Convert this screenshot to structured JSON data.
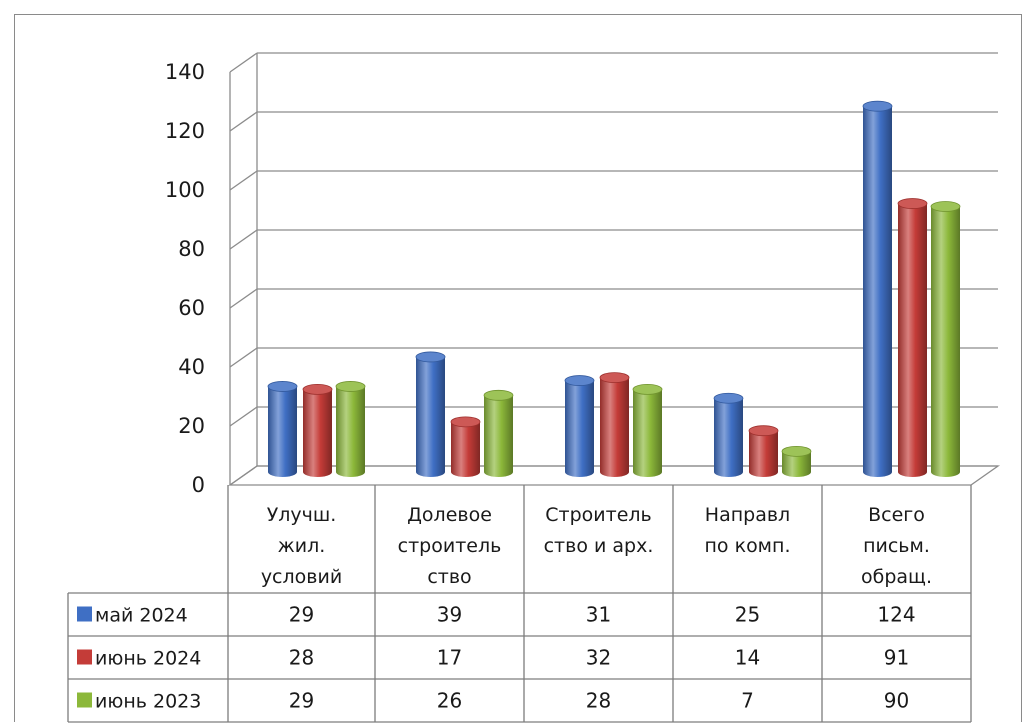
{
  "chart_data": {
    "type": "bar",
    "title": "",
    "xlabel": "",
    "ylabel": "",
    "ylim": [
      0,
      140
    ],
    "yticks": [
      "0",
      "20",
      "40",
      "60",
      "80",
      "100",
      "120",
      "140"
    ],
    "grid": true,
    "categories": [
      [
        "Улучш.",
        "жил.",
        "условий"
      ],
      [
        "Долевое",
        "строитель",
        "ство"
      ],
      [
        "Строитель",
        "ство и арх."
      ],
      [
        "Направл",
        "по комп."
      ],
      [
        "Всего",
        "письм.",
        "обращ."
      ]
    ],
    "series": [
      {
        "name": "май 2024",
        "color": "#3f6fc4",
        "values": [
          29,
          39,
          31,
          25,
          124
        ]
      },
      {
        "name": "июнь 2024",
        "color": "#c43c38",
        "values": [
          28,
          17,
          32,
          14,
          91
        ]
      },
      {
        "name": "июнь 2023",
        "color": "#8cb83a",
        "values": [
          29,
          26,
          28,
          7,
          90
        ]
      }
    ],
    "legend": "data-table-left"
  }
}
